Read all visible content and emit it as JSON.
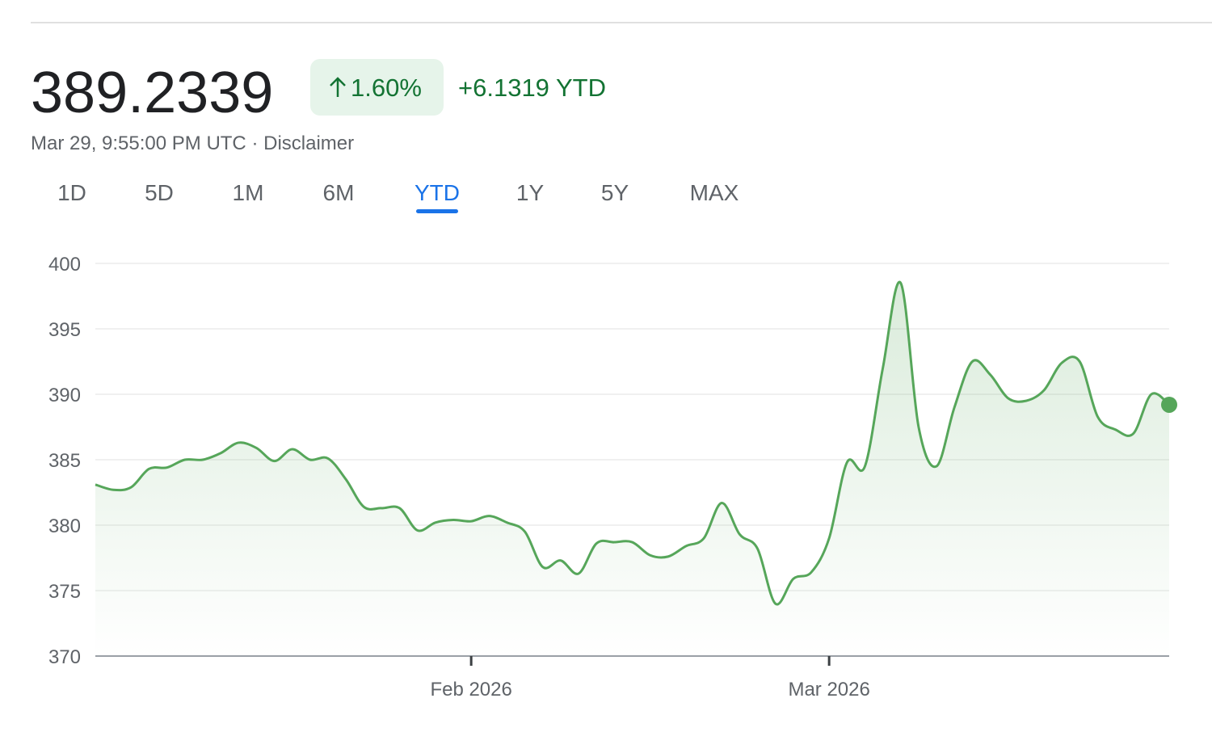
{
  "header": {
    "price": "389.2339",
    "change_percent": "1.60%",
    "change_ytd": "+6.1319 YTD",
    "timestamp": "Mar 29, 9:55:00 PM UTC",
    "separator": "·",
    "disclaimer": "Disclaimer"
  },
  "tabs": [
    "1D",
    "5D",
    "1M",
    "6M",
    "YTD",
    "1Y",
    "5Y",
    "MAX"
  ],
  "active_tab": "YTD",
  "chart_data": {
    "type": "line",
    "color": "#56a65a",
    "categories": [
      null,
      null,
      null,
      null,
      null,
      null,
      null,
      null,
      null,
      null,
      null,
      null,
      null,
      null,
      null,
      null,
      null,
      null,
      null,
      null,
      null,
      "Feb 2026",
      null,
      null,
      null,
      null,
      null,
      null,
      null,
      null,
      null,
      null,
      null,
      null,
      null,
      null,
      null,
      null,
      null,
      null,
      null,
      "Mar 2026",
      null,
      null,
      null,
      null,
      null,
      null,
      null,
      null,
      null,
      null,
      null,
      null,
      null,
      null,
      null,
      null,
      null,
      null,
      null
    ],
    "values": [
      383.1,
      382.7,
      382.9,
      384.3,
      384.4,
      385.0,
      385.0,
      385.5,
      386.3,
      385.9,
      384.9,
      385.8,
      385.0,
      385.1,
      383.5,
      381.4,
      381.3,
      381.3,
      379.6,
      380.2,
      380.4,
      380.3,
      380.7,
      380.2,
      379.5,
      376.8,
      377.3,
      376.3,
      378.6,
      378.7,
      378.7,
      377.7,
      377.6,
      378.4,
      379.0,
      381.7,
      379.3,
      378.2,
      374.0,
      375.9,
      376.4,
      379.0,
      384.8,
      384.5,
      392.0,
      398.5,
      387.5,
      384.5,
      389.0,
      392.5,
      391.5,
      389.7,
      389.5,
      390.3,
      392.4,
      392.5,
      388.3,
      387.3,
      387.0,
      390.0,
      389.2
    ],
    "ylim": [
      370,
      400
    ],
    "yticks": [
      370,
      375,
      380,
      385,
      390,
      395,
      400
    ],
    "grid": true
  }
}
